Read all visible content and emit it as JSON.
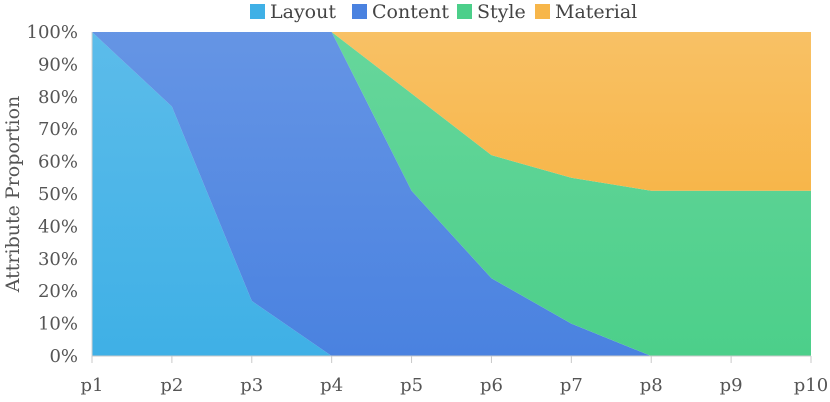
{
  "chart_data": {
    "type": "area",
    "stacked": true,
    "categories": [
      "p1",
      "p2",
      "p3",
      "p4",
      "p5",
      "p6",
      "p7",
      "p8",
      "p9",
      "p10"
    ],
    "series": [
      {
        "name": "Layout",
        "color": "#3fb0e6",
        "values": [
          100,
          77,
          17,
          0,
          0,
          0,
          0,
          0,
          0,
          0
        ]
      },
      {
        "name": "Content",
        "color": "#4a82e0",
        "values": [
          0,
          23,
          83,
          100,
          51,
          24,
          10,
          0,
          0,
          0
        ]
      },
      {
        "name": "Style",
        "color": "#4ccf8a",
        "values": [
          0,
          0,
          0,
          0,
          30,
          38,
          45,
          51,
          51,
          51
        ]
      },
      {
        "name": "Material",
        "color": "#f7b64a",
        "values": [
          0,
          0,
          0,
          0,
          19,
          38,
          45,
          49,
          49,
          49
        ]
      }
    ],
    "ylabel": "Attribute Proportion",
    "xlabel": "",
    "ylim": [
      0,
      100
    ],
    "yticks": [
      "0%",
      "10%",
      "20%",
      "30%",
      "40%",
      "50%",
      "60%",
      "70%",
      "80%",
      "90%",
      "100%"
    ],
    "legend_position": "top",
    "grid": false
  }
}
